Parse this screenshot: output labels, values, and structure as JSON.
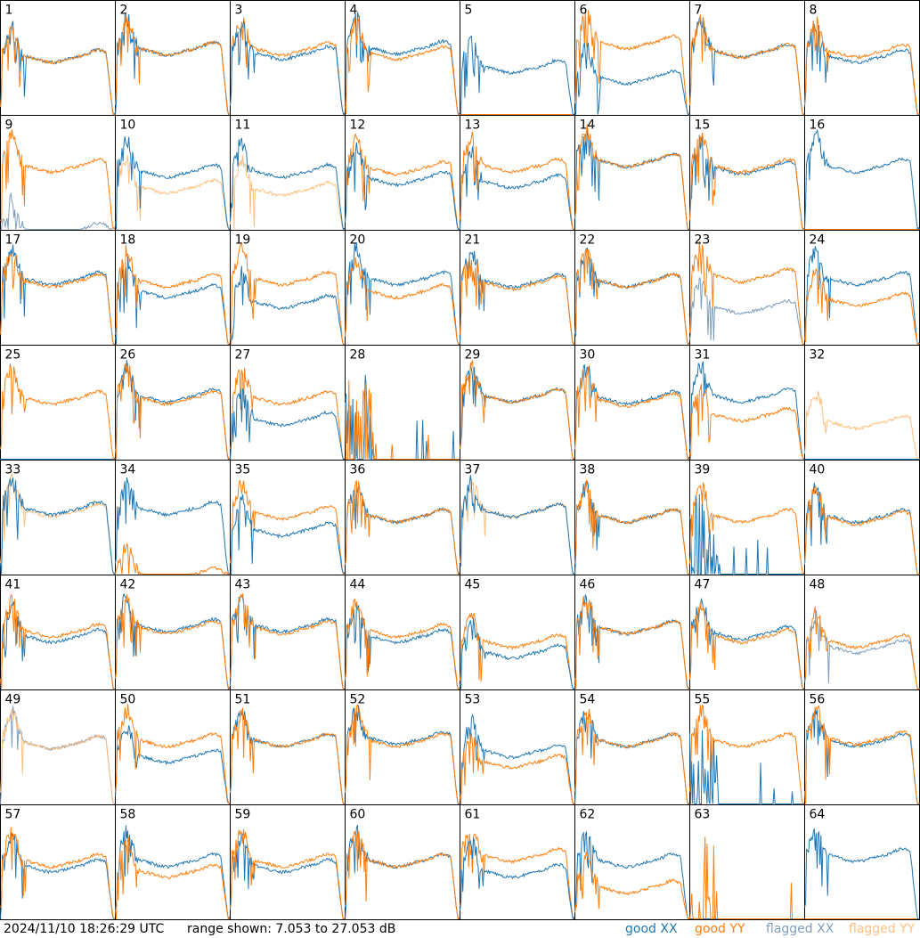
{
  "footer": {
    "timestamp": "2024/11/10 18:26:29 UTC",
    "range": "range shown: 7.053 to 27.053 dB"
  },
  "legend": [
    {
      "label": "good XX",
      "color": "#1f77b4"
    },
    {
      "label": "good YY",
      "color": "#ff7f0e"
    },
    {
      "label": "flagged XX",
      "color": "#7f9fbf"
    },
    {
      "label": "flagged YY",
      "color": "#ffbf7f"
    }
  ],
  "chart_data": {
    "type": "line",
    "layout": "8x8 small multiples",
    "ylim_db": [
      7.053,
      27.053
    ],
    "panels": [
      {
        "id": "1",
        "xx": "good",
        "yy": "good",
        "front": "yy",
        "xx_level": 0.55,
        "yy_level": 0.55
      },
      {
        "id": "2",
        "xx": "good",
        "yy": "good",
        "front": "yy",
        "xx_level": 0.62,
        "yy_level": 0.62
      },
      {
        "id": "3",
        "xx": "good",
        "yy": "good",
        "front": "xx",
        "xx_level": 0.58,
        "yy_level": 0.62
      },
      {
        "id": "4",
        "xx": "good",
        "yy": "good",
        "front": "yy",
        "xx_level": 0.63,
        "yy_level": 0.58
      },
      {
        "id": "5",
        "xx": "good",
        "yy": "flat",
        "front": "xx",
        "xx_level": 0.45,
        "yy_level": 0.0
      },
      {
        "id": "6",
        "xx": "good",
        "yy": "good",
        "front": "xx",
        "xx_level": 0.35,
        "yy_level": 0.68
      },
      {
        "id": "7",
        "xx": "good",
        "yy": "good",
        "front": "yy",
        "xx_level": 0.6,
        "yy_level": 0.6
      },
      {
        "id": "8",
        "xx": "good",
        "yy": "good",
        "front": "yy",
        "xx_level": 0.55,
        "yy_level": 0.6
      },
      {
        "id": "9",
        "xx": "flagged",
        "yy": "good",
        "front": "yy",
        "xx_level": 0.0,
        "yy_level": 0.6
      },
      {
        "id": "10",
        "xx": "good",
        "yy": "flagged",
        "front": "xx",
        "xx_level": 0.55,
        "yy_level": 0.4
      },
      {
        "id": "11",
        "xx": "good",
        "yy": "flagged",
        "front": "xx",
        "xx_level": 0.55,
        "yy_level": 0.38
      },
      {
        "id": "12",
        "xx": "good",
        "yy": "good",
        "front": "xx",
        "xx_level": 0.48,
        "yy_level": 0.58
      },
      {
        "id": "13",
        "xx": "good",
        "yy": "good",
        "front": "yy",
        "xx_level": 0.45,
        "yy_level": 0.6
      },
      {
        "id": "14",
        "xx": "good",
        "yy": "good",
        "front": "yy",
        "xx_level": 0.65,
        "yy_level": 0.65
      },
      {
        "id": "15",
        "xx": "good",
        "yy": "good",
        "front": "yy",
        "xx_level": 0.58,
        "yy_level": 0.6
      },
      {
        "id": "16",
        "xx": "good",
        "yy": "flat",
        "front": "xx",
        "xx_level": 0.6,
        "yy_level": 0.0
      },
      {
        "id": "17",
        "xx": "good",
        "yy": "good",
        "front": "yy",
        "xx_level": 0.62,
        "yy_level": 0.6
      },
      {
        "id": "18",
        "xx": "good",
        "yy": "good",
        "front": "yy",
        "xx_level": 0.5,
        "yy_level": 0.6
      },
      {
        "id": "19",
        "xx": "good",
        "yy": "good",
        "front": "yy",
        "xx_level": 0.4,
        "yy_level": 0.62
      },
      {
        "id": "20",
        "xx": "good",
        "yy": "good",
        "front": "yy",
        "xx_level": 0.62,
        "yy_level": 0.5
      },
      {
        "id": "21",
        "xx": "good",
        "yy": "good",
        "front": "yy",
        "xx_level": 0.6,
        "yy_level": 0.58
      },
      {
        "id": "22",
        "xx": "good",
        "yy": "good",
        "front": "yy",
        "xx_level": 0.6,
        "yy_level": 0.6
      },
      {
        "id": "23",
        "xx": "flagged",
        "yy": "good",
        "front": "yy",
        "xx_level": 0.35,
        "yy_level": 0.65
      },
      {
        "id": "24",
        "xx": "good",
        "yy": "good",
        "front": "yy",
        "xx_level": 0.62,
        "yy_level": 0.42
      },
      {
        "id": "25",
        "xx": "flat",
        "yy": "good",
        "front": "yy",
        "xx_level": 0.0,
        "yy_level": 0.58
      },
      {
        "id": "26",
        "xx": "good",
        "yy": "good",
        "front": "yy",
        "xx_level": 0.6,
        "yy_level": 0.58
      },
      {
        "id": "27",
        "xx": "good",
        "yy": "good",
        "front": "xx",
        "xx_level": 0.38,
        "yy_level": 0.58
      },
      {
        "id": "28",
        "xx": "spiky",
        "yy": "spiky",
        "front": "yy",
        "xx_level": 0.0,
        "yy_level": 0.0
      },
      {
        "id": "29",
        "xx": "good",
        "yy": "good",
        "front": "yy",
        "xx_level": 0.6,
        "yy_level": 0.6
      },
      {
        "id": "30",
        "xx": "good",
        "yy": "good",
        "front": "yy",
        "xx_level": 0.58,
        "yy_level": 0.56
      },
      {
        "id": "31",
        "xx": "good",
        "yy": "good",
        "front": "yy",
        "xx_level": 0.6,
        "yy_level": 0.42
      },
      {
        "id": "32",
        "xx": "flat",
        "yy": "flagged",
        "front": "yy",
        "xx_level": 0.0,
        "yy_level": 0.35
      },
      {
        "id": "33",
        "xx": "good",
        "yy": "flagged",
        "front": "xx",
        "xx_level": 0.62,
        "yy_level": 0.6
      },
      {
        "id": "34",
        "xx": "good",
        "yy": "good",
        "front": "yy",
        "xx_level": 0.62,
        "yy_level": 0.0
      },
      {
        "id": "35",
        "xx": "good",
        "yy": "good",
        "front": "xx",
        "xx_level": 0.42,
        "yy_level": 0.58
      },
      {
        "id": "36",
        "xx": "good",
        "yy": "good",
        "front": "yy",
        "xx_level": 0.55,
        "yy_level": 0.55
      },
      {
        "id": "37",
        "xx": "good",
        "yy": "flagged",
        "front": "xx",
        "xx_level": 0.6,
        "yy_level": 0.6
      },
      {
        "id": "38",
        "xx": "good",
        "yy": "good",
        "front": "yy",
        "xx_level": 0.55,
        "yy_level": 0.55
      },
      {
        "id": "39",
        "xx": "spiky",
        "yy": "good",
        "front": "yy",
        "xx_level": 0.0,
        "yy_level": 0.55
      },
      {
        "id": "40",
        "xx": "good",
        "yy": "good",
        "front": "yy",
        "xx_level": 0.55,
        "yy_level": 0.53
      },
      {
        "id": "41",
        "xx": "good",
        "yy": "good",
        "front": "yy",
        "xx_level": 0.5,
        "yy_level": 0.55
      },
      {
        "id": "42",
        "xx": "good",
        "yy": "good",
        "front": "yy",
        "xx_level": 0.6,
        "yy_level": 0.58
      },
      {
        "id": "43",
        "xx": "good",
        "yy": "good",
        "front": "yy",
        "xx_level": 0.6,
        "yy_level": 0.58
      },
      {
        "id": "44",
        "xx": "good",
        "yy": "good",
        "front": "yy",
        "xx_level": 0.5,
        "yy_level": 0.55
      },
      {
        "id": "45",
        "xx": "good",
        "yy": "good",
        "front": "xx",
        "xx_level": 0.35,
        "yy_level": 0.45
      },
      {
        "id": "46",
        "xx": "good",
        "yy": "good",
        "front": "yy",
        "xx_level": 0.58,
        "yy_level": 0.58
      },
      {
        "id": "47",
        "xx": "good",
        "yy": "good",
        "front": "yy",
        "xx_level": 0.53,
        "yy_level": 0.5
      },
      {
        "id": "48",
        "xx": "flagged",
        "yy": "good",
        "front": "yy",
        "xx_level": 0.4,
        "yy_level": 0.45
      },
      {
        "id": "49",
        "xx": "flagged",
        "yy": "flagged",
        "front": "yy",
        "xx_level": 0.58,
        "yy_level": 0.58
      },
      {
        "id": "50",
        "xx": "good",
        "yy": "good",
        "front": "yy",
        "xx_level": 0.45,
        "yy_level": 0.6
      },
      {
        "id": "51",
        "xx": "good",
        "yy": "good",
        "front": "yy",
        "xx_level": 0.6,
        "yy_level": 0.6
      },
      {
        "id": "52",
        "xx": "good",
        "yy": "good",
        "front": "yy",
        "xx_level": 0.62,
        "yy_level": 0.6
      },
      {
        "id": "53",
        "xx": "good",
        "yy": "good",
        "front": "yy",
        "xx_level": 0.5,
        "yy_level": 0.4
      },
      {
        "id": "54",
        "xx": "good",
        "yy": "good",
        "front": "yy",
        "xx_level": 0.6,
        "yy_level": 0.6
      },
      {
        "id": "55",
        "xx": "spiky",
        "yy": "good",
        "front": "yy",
        "xx_level": 0.0,
        "yy_level": 0.6
      },
      {
        "id": "56",
        "xx": "good",
        "yy": "good",
        "front": "yy",
        "xx_level": 0.6,
        "yy_level": 0.62
      },
      {
        "id": "57",
        "xx": "good",
        "yy": "good",
        "front": "yy",
        "xx_level": 0.5,
        "yy_level": 0.55
      },
      {
        "id": "58",
        "xx": "good",
        "yy": "good",
        "front": "yy",
        "xx_level": 0.55,
        "yy_level": 0.45
      },
      {
        "id": "59",
        "xx": "good",
        "yy": "good",
        "front": "yy",
        "xx_level": 0.5,
        "yy_level": 0.55
      },
      {
        "id": "60",
        "xx": "good",
        "yy": "good",
        "front": "yy",
        "xx_level": 0.55,
        "yy_level": 0.55
      },
      {
        "id": "61",
        "xx": "good",
        "yy": "good",
        "front": "xx",
        "xx_level": 0.45,
        "yy_level": 0.6
      },
      {
        "id": "62",
        "xx": "good",
        "yy": "good",
        "front": "yy",
        "xx_level": 0.55,
        "yy_level": 0.3
      },
      {
        "id": "63",
        "xx": "flat",
        "yy": "spiky",
        "front": "yy",
        "xx_level": 0.0,
        "yy_level": 0.0
      },
      {
        "id": "64",
        "xx": "good",
        "yy": "flat",
        "front": "xx",
        "xx_level": 0.6,
        "yy_level": 0.0
      }
    ]
  }
}
